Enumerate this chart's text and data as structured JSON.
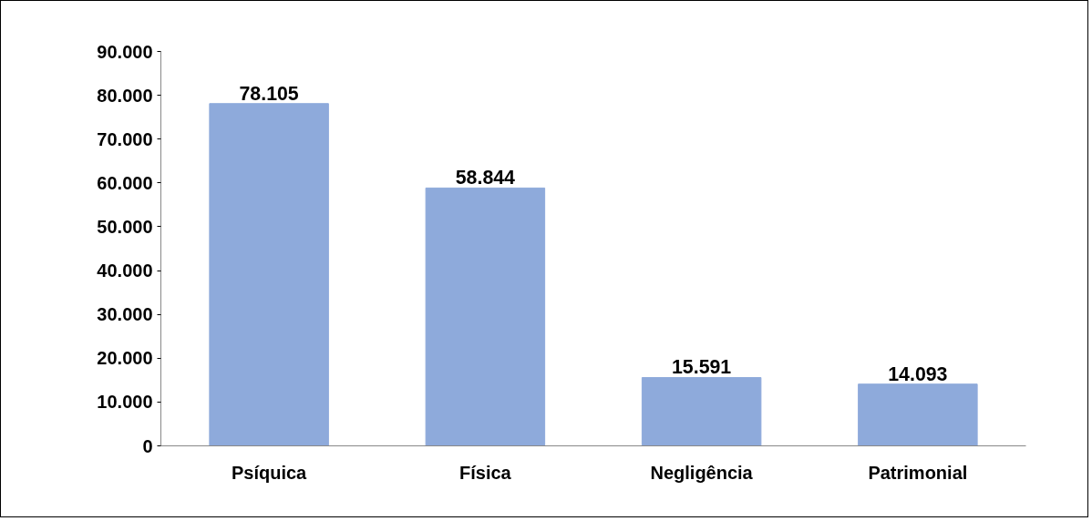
{
  "chart_data": {
    "type": "bar",
    "categories": [
      "Psíquica",
      "Física",
      "Negligência",
      "Patrimonial"
    ],
    "values": [
      78105,
      58844,
      15591,
      14093
    ],
    "value_labels": [
      "78.105",
      "58.844",
      "15.591",
      "14.093"
    ],
    "color": "#8eaadb",
    "ylim": [
      0,
      90000
    ],
    "yticks": [
      {
        "value": 0,
        "label": "0"
      },
      {
        "value": 10000,
        "label": "10.000"
      },
      {
        "value": 20000,
        "label": "20.000"
      },
      {
        "value": 30000,
        "label": "30.000"
      },
      {
        "value": 40000,
        "label": "40.000"
      },
      {
        "value": 50000,
        "label": "50.000"
      },
      {
        "value": 60000,
        "label": "60.000"
      },
      {
        "value": 70000,
        "label": "70.000"
      },
      {
        "value": 80000,
        "label": "80.000"
      },
      {
        "value": 90000,
        "label": "90.000"
      }
    ],
    "grid": false
  }
}
